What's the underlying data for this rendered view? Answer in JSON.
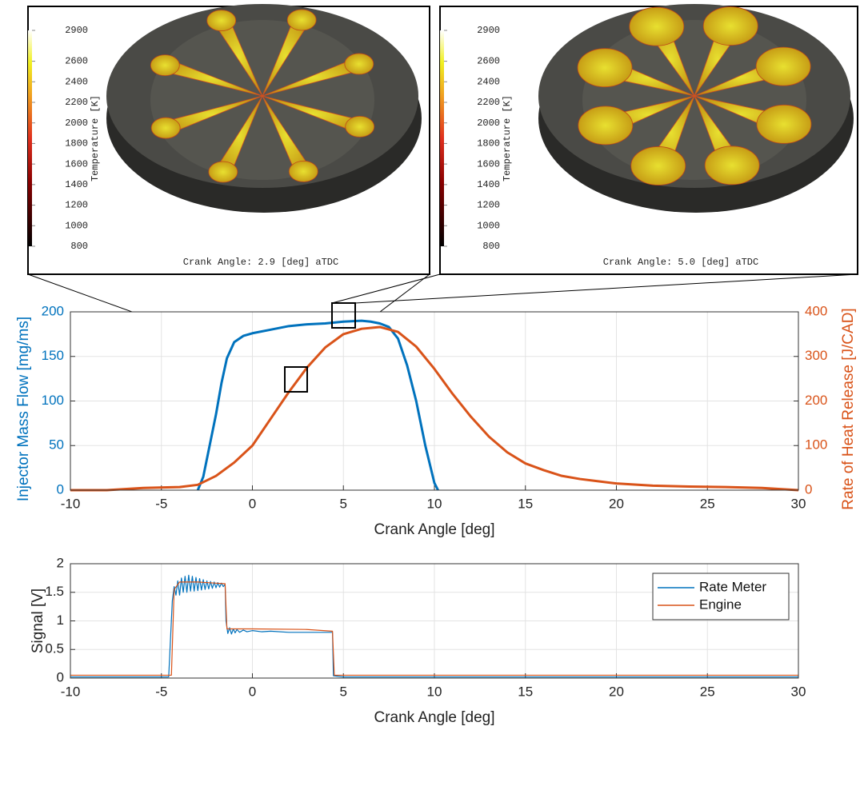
{
  "insets": [
    {
      "colorbar": {
        "label": "Temperature [K]",
        "lim": [
          800,
          2900
        ],
        "ticks": [
          2900,
          2600,
          2400,
          2200,
          2000,
          1800,
          1600,
          1400,
          1200,
          1000,
          800
        ]
      },
      "caption": "Crank Angle: 2.9 [deg] aTDC"
    },
    {
      "colorbar": {
        "label": "Temperature [K]",
        "lim": [
          800,
          2900
        ],
        "ticks": [
          2900,
          2600,
          2400,
          2200,
          2000,
          1800,
          1600,
          1400,
          1200,
          1000,
          800
        ]
      },
      "caption": "Crank Angle: 5.0 [deg] aTDC"
    }
  ],
  "chart_data": [
    {
      "type": "line",
      "xlabel": "Crank Angle [deg]",
      "ylabel": "Injector Mass Flow [mg/ms]",
      "y2label": "Rate of Heat Release [J/CAD]",
      "xlim": [
        -10,
        30
      ],
      "xticks": [
        -10,
        -5,
        0,
        5,
        10,
        15,
        20,
        25,
        30
      ],
      "ylim": [
        0,
        200
      ],
      "yticks": [
        0,
        50,
        100,
        150,
        200
      ],
      "y2lim": [
        0,
        400
      ],
      "y2ticks": [
        0,
        100,
        200,
        300,
        400
      ],
      "grid": true,
      "series": [
        {
          "color": "#0072BD",
          "x": [
            -3,
            -2.7,
            -2.4,
            -2,
            -1.7,
            -1.4,
            -1,
            -0.5,
            0,
            1,
            2,
            3,
            4,
            5,
            6,
            6.5,
            7,
            7.5,
            8,
            8.5,
            9,
            9.5,
            10,
            10.2
          ],
          "values": [
            0,
            15,
            45,
            85,
            120,
            148,
            166,
            173,
            176,
            180,
            184,
            186,
            187,
            189,
            190,
            189,
            187,
            183,
            170,
            140,
            100,
            50,
            8,
            0
          ]
        },
        {
          "color": "#D95319",
          "axis": "y2",
          "x": [
            -10,
            -8,
            -6,
            -4,
            -3,
            -2,
            -1,
            0,
            1,
            2,
            3,
            4,
            5,
            6,
            7,
            8,
            9,
            10,
            11,
            12,
            13,
            14,
            15,
            16,
            17,
            18,
            19,
            20,
            22,
            24,
            26,
            28,
            30
          ],
          "values": [
            0,
            0,
            5,
            7,
            12,
            32,
            62,
            100,
            160,
            220,
            275,
            320,
            350,
            362,
            366,
            355,
            322,
            272,
            216,
            165,
            120,
            85,
            60,
            45,
            32,
            25,
            20,
            15,
            10,
            8,
            7,
            5,
            0
          ]
        }
      ]
    },
    {
      "type": "line",
      "xlabel": "Crank Angle [deg]",
      "ylabel": "Signal [V]",
      "xlim": [
        -10,
        30
      ],
      "xticks": [
        -10,
        -5,
        0,
        5,
        10,
        15,
        20,
        25,
        30
      ],
      "ylim": [
        0,
        2
      ],
      "yticks": [
        0,
        0.5,
        1,
        1.5,
        2
      ],
      "grid": true,
      "legend": "upper right",
      "series": [
        {
          "name": "Rate Meter",
          "color": "#0072BD",
          "x": [
            -10,
            -4.6,
            -4.4,
            -4.3,
            -4.2,
            -4.1,
            -4.0,
            -3.9,
            -3.8,
            -3.7,
            -3.6,
            -3.5,
            -3.4,
            -3.3,
            -3.2,
            -3.1,
            -3.0,
            -2.9,
            -2.8,
            -2.7,
            -2.6,
            -2.5,
            -2.4,
            -2.3,
            -2.2,
            -2.1,
            -2.0,
            -1.9,
            -1.8,
            -1.7,
            -1.6,
            -1.5,
            -1.45,
            -1.35,
            -1.25,
            -1.15,
            -1.05,
            -0.95,
            -0.85,
            -0.7,
            -0.5,
            -0.3,
            0,
            0.5,
            1,
            2,
            3,
            4,
            4.4,
            4.45,
            5,
            30
          ],
          "values": [
            0.02,
            0.02,
            1.35,
            1.6,
            1.45,
            1.7,
            1.45,
            1.75,
            1.5,
            1.78,
            1.5,
            1.8,
            1.52,
            1.78,
            1.52,
            1.76,
            1.53,
            1.74,
            1.54,
            1.72,
            1.55,
            1.7,
            1.56,
            1.69,
            1.57,
            1.68,
            1.58,
            1.67,
            1.59,
            1.66,
            1.6,
            1.64,
            1.0,
            0.78,
            0.88,
            0.77,
            0.86,
            0.79,
            0.85,
            0.8,
            0.84,
            0.81,
            0.83,
            0.81,
            0.82,
            0.8,
            0.8,
            0.8,
            0.8,
            0.04,
            0.02,
            0.02
          ]
        },
        {
          "name": "Engine",
          "color": "#D95319",
          "x": [
            -10,
            -4.45,
            -4.3,
            -4.0,
            -3.0,
            -2.0,
            -1.5,
            -1.4,
            0,
            3,
            4.4,
            4.5,
            10,
            30
          ],
          "values": [
            0.05,
            0.05,
            1.55,
            1.68,
            1.68,
            1.66,
            1.65,
            0.86,
            0.86,
            0.85,
            0.82,
            0.05,
            0.05,
            0.05
          ]
        }
      ]
    }
  ]
}
